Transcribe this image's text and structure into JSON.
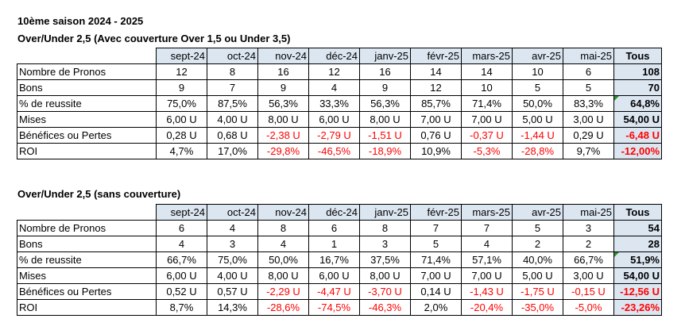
{
  "season_title": "10ème saison 2024 - 2025",
  "months": [
    "sept-24",
    "oct-24",
    "nov-24",
    "déc-24",
    "janv-25",
    "févr-25",
    "mars-25",
    "avr-25",
    "mai-25"
  ],
  "total_header": "Tous",
  "negative_color": "#ff0000",
  "header_fill": "#dce6f1",
  "tables": [
    {
      "title": "Over/Under 2,5 (Avec couverture Over 1,5 ou Under 3,5)",
      "rows": [
        {
          "label": "Nombre de Pronos",
          "values": [
            "12",
            "8",
            "16",
            "12",
            "16",
            "14",
            "14",
            "10",
            "6"
          ],
          "total": "108"
        },
        {
          "label": "Bons",
          "values": [
            "9",
            "7",
            "9",
            "4",
            "9",
            "12",
            "10",
            "5",
            "5"
          ],
          "total": "70"
        },
        {
          "label": "% de reussite",
          "values": [
            "75,0%",
            "87,5%",
            "56,3%",
            "33,3%",
            "56,3%",
            "85,7%",
            "71,4%",
            "50,0%",
            "83,3%"
          ],
          "total": "64,8%"
        },
        {
          "label": "Mises",
          "values": [
            "6,00 U",
            "4,00 U",
            "8,00 U",
            "6,00 U",
            "8,00 U",
            "7,00 U",
            "7,00 U",
            "5,00 U",
            "3,00 U"
          ],
          "total": "54,00 U"
        },
        {
          "label": "Bénéfices ou Pertes",
          "values": [
            "0,28 U",
            "0,68 U",
            "-2,38 U",
            "-2,79 U",
            "-1,51 U",
            "0,76 U",
            "-0,37 U",
            "-1,44 U",
            "0,29 U"
          ],
          "total": "-6,48 U"
        },
        {
          "label": "ROI",
          "values": [
            "4,7%",
            "17,0%",
            "-29,8%",
            "-46,5%",
            "-18,9%",
            "10,9%",
            "-5,3%",
            "-28,8%",
            "9,7%"
          ],
          "total": "-12,00%"
        }
      ]
    },
    {
      "title": "Over/Under 2,5 (sans couverture)",
      "rows": [
        {
          "label": "Nombre de Pronos",
          "values": [
            "6",
            "4",
            "8",
            "6",
            "8",
            "7",
            "7",
            "5",
            "3"
          ],
          "total": "54"
        },
        {
          "label": "Bons",
          "values": [
            "4",
            "3",
            "4",
            "1",
            "3",
            "5",
            "4",
            "2",
            "2"
          ],
          "total": "28"
        },
        {
          "label": "% de reussite",
          "values": [
            "66,7%",
            "75,0%",
            "50,0%",
            "16,7%",
            "37,5%",
            "71,4%",
            "57,1%",
            "40,0%",
            "66,7%"
          ],
          "total": "51,9%"
        },
        {
          "label": "Mises",
          "values": [
            "6,00 U",
            "4,00 U",
            "8,00 U",
            "6,00 U",
            "8,00 U",
            "7,00 U",
            "7,00 U",
            "5,00 U",
            "3,00 U"
          ],
          "total": "54,00 U"
        },
        {
          "label": "Bénéfices ou Pertes",
          "values": [
            "0,52 U",
            "0,57 U",
            "-2,29 U",
            "-4,47 U",
            "-3,70 U",
            "0,14 U",
            "-1,43 U",
            "-1,75 U",
            "-0,15 U"
          ],
          "total": "-12,56 U"
        },
        {
          "label": "ROI",
          "values": [
            "8,7%",
            "14,3%",
            "-28,6%",
            "-74,5%",
            "-46,3%",
            "2,0%",
            "-20,4%",
            "-35,0%",
            "-5,0%"
          ],
          "total": "-23,26%"
        }
      ]
    }
  ]
}
